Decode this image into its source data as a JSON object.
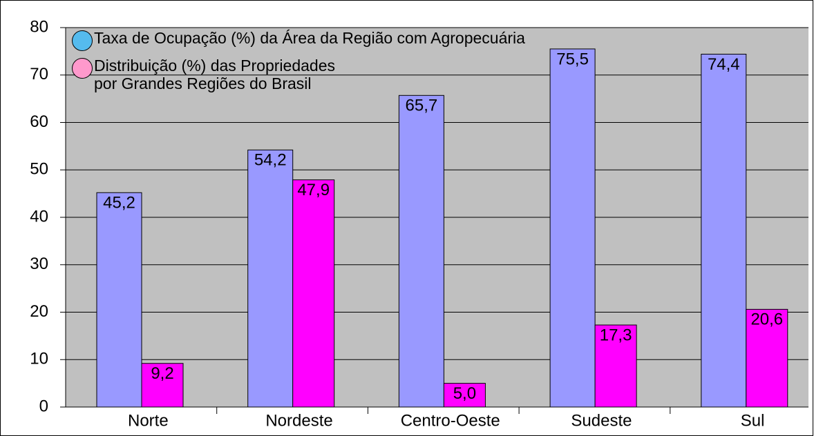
{
  "chart_data": {
    "type": "bar",
    "categories": [
      "Norte",
      "Nordeste",
      "Centro-Oeste",
      "Sudeste",
      "Sul"
    ],
    "series": [
      {
        "name": "Taxa de Ocupação (%) da Área da Região com Agropecuária",
        "color": "#9999ff",
        "legend_color": "#55bbee",
        "values": [
          45.2,
          54.2,
          65.7,
          75.5,
          74.4
        ],
        "value_labels": [
          "45,2",
          "54,2",
          "65,7",
          "75,5",
          "74,4"
        ]
      },
      {
        "name": "Distribuição (%) das Propriedades\npor Grandes Regiões do Brasil",
        "color": "#ff00ff",
        "legend_color": "#ff99cc",
        "values": [
          9.2,
          47.9,
          5.0,
          17.3,
          20.6
        ],
        "value_labels": [
          "9,2",
          "47,9",
          "5,0",
          "17,3",
          "20,6"
        ]
      }
    ],
    "ylim": [
      0,
      80
    ],
    "yticks": [
      0,
      10,
      20,
      30,
      40,
      50,
      60,
      70,
      80
    ],
    "grid": true
  }
}
